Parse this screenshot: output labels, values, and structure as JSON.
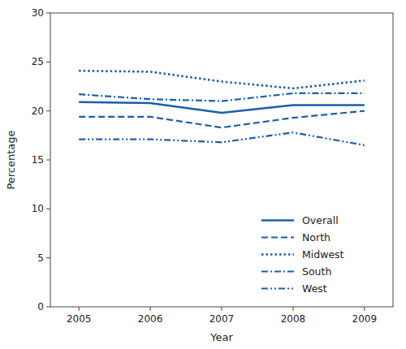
{
  "chart_data": {
    "type": "line",
    "xlabel": "Year",
    "ylabel": "Percentage",
    "x": [
      2005,
      2006,
      2007,
      2008,
      2009
    ],
    "xlim": [
      2004.6,
      2009.4
    ],
    "xticks": [
      2005,
      2006,
      2007,
      2008,
      2009
    ],
    "ylim": [
      0,
      30
    ],
    "yticks": [
      0,
      5,
      10,
      15,
      20,
      25,
      30
    ],
    "grid": false,
    "legend": "lower right",
    "series": [
      {
        "name": "Overall",
        "color": "#1b5faa",
        "line_style": "solid",
        "values": [
          20.9,
          20.8,
          19.8,
          20.6,
          20.6
        ]
      },
      {
        "name": "North",
        "color": "#1b5faa",
        "line_style": "dashed",
        "values": [
          19.4,
          19.4,
          18.3,
          19.3,
          20.0
        ]
      },
      {
        "name": "Midwest",
        "color": "#1b5faa",
        "line_style": "dotted",
        "values": [
          24.1,
          24.0,
          23.0,
          22.3,
          23.1
        ]
      },
      {
        "name": "South",
        "color": "#1b5faa",
        "line_style": "dashdot",
        "values": [
          21.7,
          21.2,
          21.0,
          21.8,
          21.8
        ]
      },
      {
        "name": "West",
        "color": "#1b5faa",
        "line_style": "dashdotdot",
        "values": [
          17.1,
          17.1,
          16.8,
          17.8,
          16.5
        ]
      }
    ]
  }
}
